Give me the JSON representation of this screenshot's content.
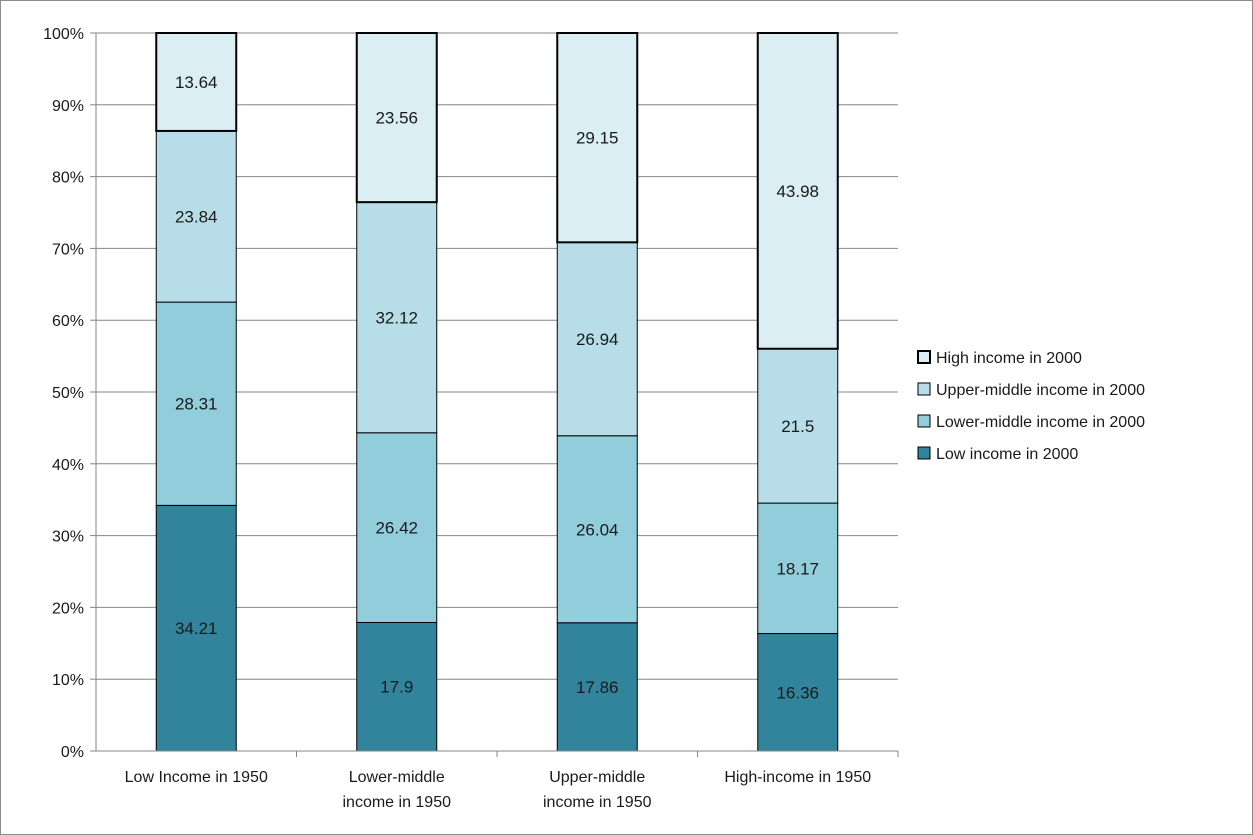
{
  "chart_data": {
    "type": "bar",
    "stacked": true,
    "percent": true,
    "categories": [
      [
        "Low Income in 1950"
      ],
      [
        "Lower-middle",
        "income in 1950"
      ],
      [
        "Upper-middle",
        "income in 1950"
      ],
      [
        "High-income in 1950"
      ]
    ],
    "series": [
      {
        "name": "Low income in 2000",
        "values": [
          34.21,
          17.9,
          17.86,
          16.36
        ],
        "color": "#31849b"
      },
      {
        "name": "Lower-middle income in 2000",
        "values": [
          28.31,
          26.42,
          26.04,
          18.17
        ],
        "color": "#92cddc"
      },
      {
        "name": "Upper-middle income in 2000",
        "values": [
          23.84,
          32.12,
          26.94,
          21.5
        ],
        "color": "#b7dee8"
      },
      {
        "name": "High income in 2000",
        "values": [
          13.64,
          23.56,
          29.15,
          43.98
        ],
        "color": "#daeef3"
      }
    ],
    "data_labels": [
      [
        "34.21",
        "17.9",
        "17.86",
        "16.36"
      ],
      [
        "28.31",
        "26.42",
        "26.04",
        "18.17"
      ],
      [
        "23.84",
        "32.12",
        "26.94",
        "21.5"
      ],
      [
        "13.64",
        "23.56",
        "29.15",
        "43.98"
      ]
    ],
    "y_ticks": [
      "0%",
      "10%",
      "20%",
      "30%",
      "40%",
      "50%",
      "60%",
      "70%",
      "80%",
      "90%",
      "100%"
    ],
    "ylim": [
      0,
      100
    ],
    "grid": true,
    "legend_position": "right",
    "legend_order": [
      3,
      2,
      1,
      0
    ],
    "title": "",
    "xlabel": "",
    "ylabel": ""
  }
}
